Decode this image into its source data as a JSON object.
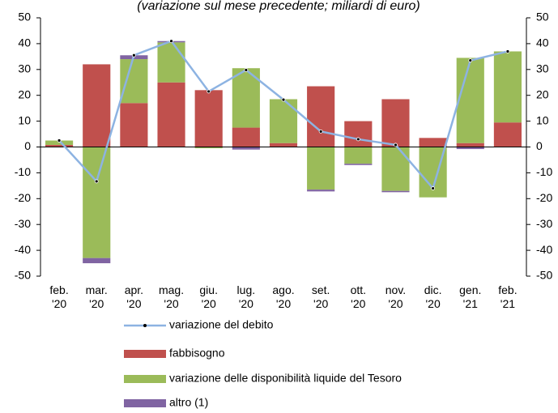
{
  "chart_data": {
    "type": "stacked-bar-line",
    "title": "(variazione sul mese precedente; miliardi di euro)",
    "categories": [
      "feb.\n'20",
      "mar.\n'20",
      "apr.\n'20",
      "mag.\n'20",
      "giu.\n'20",
      "lug.\n'20",
      "ago.\n'20",
      "set.\n'20",
      "ott.\n'20",
      "nov.\n'20",
      "dic.\n'20",
      "gen.\n'21",
      "feb.\n'21"
    ],
    "series": [
      {
        "name": "fabbisogno",
        "color": "#c0504d",
        "values": [
          0.8,
          32,
          17,
          25,
          22,
          7.5,
          1.5,
          23.5,
          10,
          18.5,
          3.5,
          1.5,
          9.5
        ]
      },
      {
        "name": "variazione delle disponibilità liquide del Tesoro",
        "color": "#9bbb59",
        "values": [
          1.7,
          -43,
          17,
          15.5,
          -0.5,
          23,
          17,
          -16.5,
          -6.5,
          -17,
          -19.5,
          33,
          27.5
        ]
      },
      {
        "name": "altro (1)",
        "color": "#8064a2",
        "values": [
          0,
          -2,
          1.5,
          0.5,
          0,
          -1,
          0,
          -0.7,
          -0.5,
          -0.5,
          0,
          -0.8,
          0
        ]
      }
    ],
    "line": {
      "name": "variazione del debito",
      "color": "#8db3e2",
      "values": [
        2.5,
        -13.3,
        35.5,
        41,
        21.5,
        29.8,
        18.3,
        6,
        3,
        0.8,
        -16,
        33.5,
        37
      ]
    },
    "ylim": [
      -50,
      50
    ],
    "yticks": [
      -50,
      -40,
      -30,
      -20,
      -10,
      0,
      10,
      20,
      30,
      40,
      50
    ],
    "y2lim": [
      -50,
      50
    ],
    "y2ticks": [
      -50,
      -40,
      -30,
      -20,
      -10,
      0,
      10,
      20,
      30,
      40,
      50
    ]
  }
}
